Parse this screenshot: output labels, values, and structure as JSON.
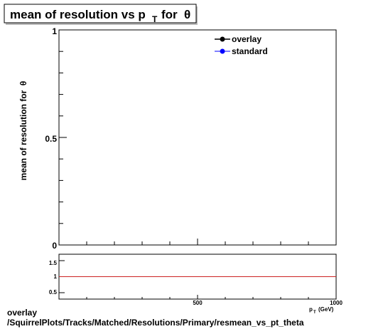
{
  "chart_data": [
    {
      "type": "line",
      "title": {
        "main": "mean of resolution vs p",
        "sub": "T",
        "tail": "for",
        "symbol": "θ"
      },
      "ylabel": {
        "text": "mean of resolution for",
        "symbol": "θ"
      },
      "xlim": [
        0,
        1000
      ],
      "ylim": [
        0,
        1
      ],
      "ytick_labels": [
        "0",
        "0.5",
        "1"
      ],
      "legend": {
        "placement": "top-right",
        "entries": [
          {
            "name": "overlay",
            "color": "#000000"
          },
          {
            "name": "standard",
            "color": "#0000ff"
          }
        ]
      },
      "series": []
    },
    {
      "type": "line",
      "xlim": [
        0,
        1000
      ],
      "ylim": [
        0.3,
        1.7
      ],
      "xtick_labels": [
        "500",
        "1000"
      ],
      "ytick_labels": [
        "0.5",
        "1",
        "1.5"
      ],
      "xlabel": {
        "main": "p",
        "sub": "T",
        "unit": "(GeV)"
      },
      "reference_line": {
        "y": 1,
        "color": "#cc2222"
      },
      "series": []
    }
  ],
  "footer": {
    "line1": "overlay",
    "line2": "/SquirrelPlots/Tracks/Matched/Resolutions/Primary/resmean_vs_pt_theta"
  }
}
